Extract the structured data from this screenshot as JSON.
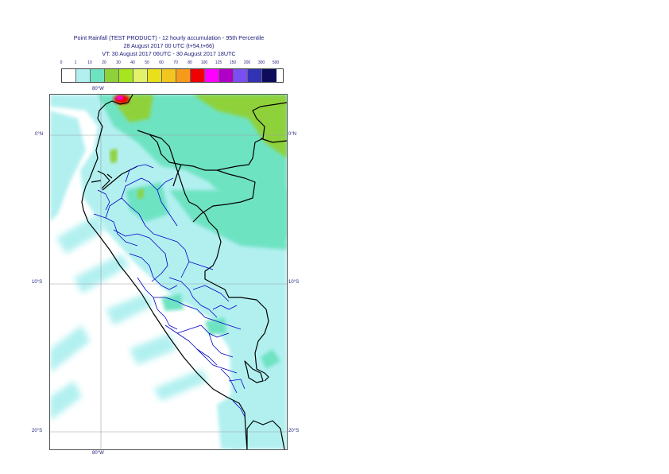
{
  "title": {
    "line1": "Point Rainfall (TEST PRODUCT) - 12 hourly accumulation - 95th Percentile",
    "line2": "28 August 2017 00 UTC (t+54,t+66)",
    "line3": "VT: 30 August 2017 06UTC - 30 August 2017 18UTC"
  },
  "legend": {
    "thresholds": [
      "0",
      "1",
      "10",
      "20",
      "30",
      "40",
      "50",
      "60",
      "70",
      "80",
      "100",
      "125",
      "150",
      "200",
      "300",
      "500"
    ],
    "colors": [
      "#ffffff",
      "#b2f0f0",
      "#6ee3c2",
      "#8fd13a",
      "#a6e61e",
      "#e3f26a",
      "#e8e01c",
      "#f2c61e",
      "#f59a1a",
      "#f00000",
      "#ff00ff",
      "#b000c8",
      "#7a4ef0",
      "#3232b4",
      "#0c0c5a"
    ]
  },
  "axes": {
    "lon_top": "80°W",
    "lon_bottom": "80°W",
    "lat_left": [
      "0°N",
      "10°S",
      "20°S"
    ],
    "lat_right": [
      "0°N",
      "10°S",
      "20°S"
    ]
  },
  "map": {
    "ocean_color": "#ffffff",
    "rain_light_color": "#b2f0f0",
    "rain_mid_color": "#6ee3c2",
    "rain_heavy_color": "#8fd13a",
    "rain_extreme_color": "#f00000",
    "country_border_color": "#000000",
    "region_border_color": "#0000c8",
    "grid_color": "#9aa0a6"
  }
}
